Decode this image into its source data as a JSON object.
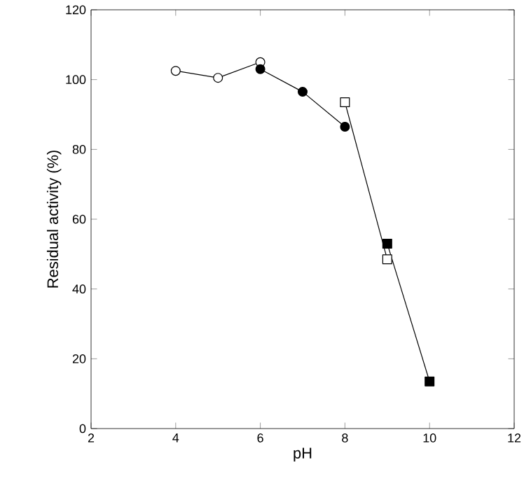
{
  "chart_data": {
    "type": "line",
    "xlabel": "pH",
    "ylabel": "Residual activity (%)",
    "xlim": [
      2,
      12
    ],
    "xticks": [
      2,
      4,
      6,
      8,
      10,
      12
    ],
    "ylim": [
      0,
      120
    ],
    "yticks": [
      0,
      20,
      40,
      60,
      80,
      100,
      120
    ],
    "grid": false,
    "line_style": "solid",
    "series": [
      {
        "x": [
          4,
          5,
          6
        ],
        "values": [
          102.5,
          100.5,
          105
        ],
        "marker": "circle",
        "color": "#ffffff"
      },
      {
        "x": [
          6,
          7,
          8
        ],
        "values": [
          103,
          96.5,
          86.5
        ],
        "marker": "circle",
        "color": "#000000"
      },
      {
        "x": [
          8,
          9
        ],
        "values": [
          93.5,
          48.5
        ],
        "marker": "square",
        "color": "#ffffff"
      },
      {
        "x": [
          9,
          10
        ],
        "values": [
          53,
          13.5
        ],
        "marker": "square",
        "color": "#000000"
      }
    ]
  }
}
